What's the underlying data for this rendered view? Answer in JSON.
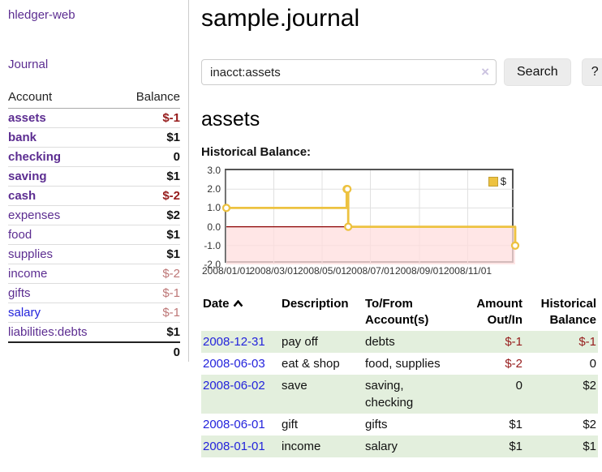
{
  "colors": {
    "purple_link": "#5c2d91",
    "blue_link": "#2323dc",
    "negative_strong": "#961c1c",
    "negative_muted": "#bd7676",
    "row_stripe_green": "#e3efdd",
    "chart_line": "#edc240",
    "chart_negative_fill": "#ffdede",
    "chart_zero_line": "#8b0000"
  },
  "sidebar": {
    "brand": "hledger-web",
    "journal_link": "Journal",
    "accounts_table": {
      "headers": [
        "Account",
        "Balance"
      ],
      "rows": [
        {
          "name": "assets",
          "balance": "$-1",
          "indent": 1,
          "bold": true,
          "balance_class": "neg",
          "link_class": "purple"
        },
        {
          "name": "bank",
          "balance": "$1",
          "indent": 2,
          "bold": true,
          "balance_class": "pos",
          "link_class": "purple"
        },
        {
          "name": "checking",
          "balance": "0",
          "indent": 3,
          "bold": true,
          "balance_class": "pos",
          "link_class": "purple"
        },
        {
          "name": "saving",
          "balance": "$1",
          "indent": 3,
          "bold": true,
          "balance_class": "pos",
          "link_class": "purple"
        },
        {
          "name": "cash",
          "balance": "$-2",
          "indent": 2,
          "bold": true,
          "balance_class": "neg",
          "link_class": "purple"
        },
        {
          "name": "expenses",
          "balance": "$2",
          "indent": 1,
          "bold": false,
          "balance_class": "pos",
          "link_class": "purple"
        },
        {
          "name": "food",
          "balance": "$1",
          "indent": 2,
          "bold": false,
          "balance_class": "pos",
          "link_class": "purple"
        },
        {
          "name": "supplies",
          "balance": "$1",
          "indent": 2,
          "bold": false,
          "balance_class": "pos",
          "link_class": "purple"
        },
        {
          "name": "income",
          "balance": "$-2",
          "indent": 1,
          "bold": false,
          "balance_class": "negmuted",
          "link_class": "purple"
        },
        {
          "name": "gifts",
          "balance": "$-1",
          "indent": 2,
          "bold": false,
          "balance_class": "negmuted",
          "link_class": "purple"
        },
        {
          "name": "salary",
          "balance": "$-1",
          "indent": 2,
          "bold": false,
          "balance_class": "negmuted",
          "link_class": "blue"
        },
        {
          "name": "liabilities:debts",
          "balance": "$1",
          "indent": 1,
          "bold": false,
          "balance_class": "pos",
          "link_class": "purple"
        }
      ],
      "total": "0"
    }
  },
  "header": {
    "title": "sample.journal"
  },
  "search": {
    "value": "inacct:assets",
    "clear_icon": "×",
    "button_label": "Search",
    "help_label": "?"
  },
  "account_page": {
    "heading": "assets",
    "chart_label": "Historical Balance:"
  },
  "chart_data": {
    "type": "line",
    "step": true,
    "title": "Historical Balance",
    "legend": "$",
    "legend_position": "top-right",
    "grid": true,
    "xrange": [
      "2008-01-01",
      "2008-12-31"
    ],
    "ylim": [
      -2,
      3
    ],
    "yticks": [
      "3.0",
      "2.0",
      "1.0",
      "0.0",
      "-1.0",
      "-2.0"
    ],
    "xticks": [
      "2008/01/01",
      "2008/03/01",
      "2008/05/01",
      "2008/07/01",
      "2008/09/01",
      "2008/11/01"
    ],
    "series": [
      {
        "name": "$",
        "color": "#edc240",
        "points": [
          [
            "2008-01-01",
            1
          ],
          [
            "2008-06-01",
            2
          ],
          [
            "2008-06-02",
            2
          ],
          [
            "2008-06-03",
            0
          ],
          [
            "2008-12-31",
            -1
          ]
        ]
      }
    ]
  },
  "register_table": {
    "headers": {
      "date": "Date",
      "description": "Description",
      "accounts": "To/From Account(s)",
      "amount": "Amount Out/In",
      "balance": "Historical Balance"
    },
    "sort_icon": "chevron-up",
    "rows": [
      {
        "date": "2008-12-31",
        "description": "pay off",
        "accounts": "debts",
        "amount": "$-1",
        "amount_class": "neg",
        "balance": "$-1",
        "balance_class": "neg",
        "striped": true
      },
      {
        "date": "2008-06-03",
        "description": "eat & shop",
        "accounts": "food, supplies",
        "amount": "$-2",
        "amount_class": "neg",
        "balance": "0",
        "balance_class": "",
        "striped": false
      },
      {
        "date": "2008-06-02",
        "description": "save",
        "accounts": "saving, checking",
        "amount": "0",
        "amount_class": "",
        "balance": "$2",
        "balance_class": "",
        "striped": true
      },
      {
        "date": "2008-06-01",
        "description": "gift",
        "accounts": "gifts",
        "amount": "$1",
        "amount_class": "",
        "balance": "$2",
        "balance_class": "",
        "striped": false
      },
      {
        "date": "2008-01-01",
        "description": "income",
        "accounts": "salary",
        "amount": "$1",
        "amount_class": "",
        "balance": "$1",
        "balance_class": "",
        "striped": true
      }
    ]
  }
}
